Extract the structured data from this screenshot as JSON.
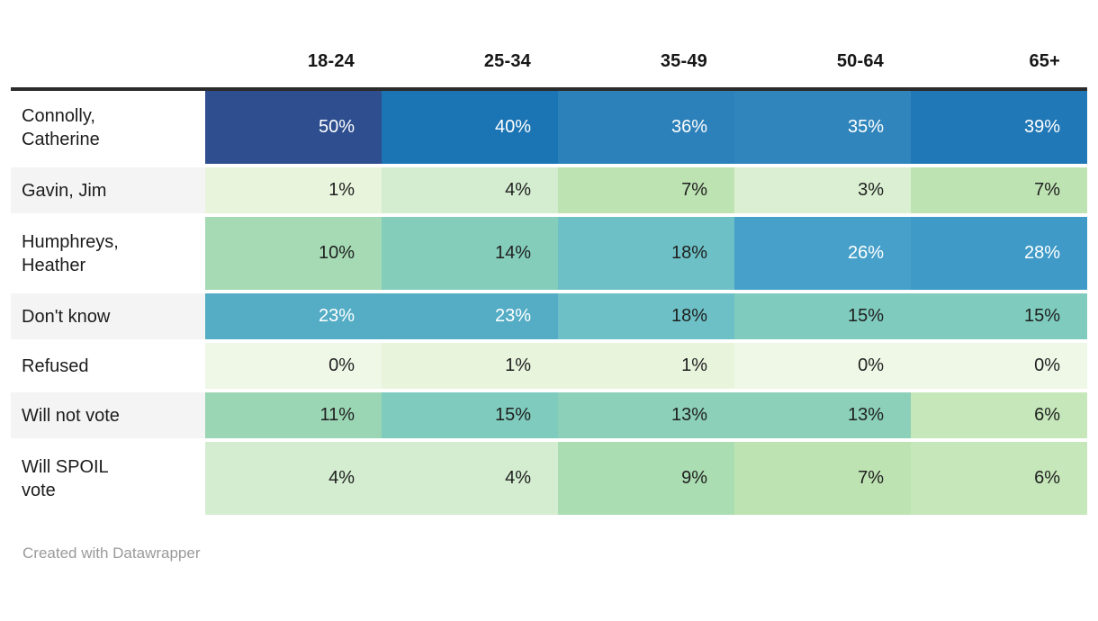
{
  "chart_data": {
    "type": "heatmap",
    "columns": [
      "18-24",
      "25-34",
      "35-49",
      "50-64",
      "65+"
    ],
    "rows": [
      "Connolly, Catherine",
      "Gavin, Jim",
      "Humphreys, Heather",
      "Don't know",
      "Refused",
      "Will not vote",
      "Will SPOIL vote"
    ],
    "values": [
      [
        50,
        40,
        36,
        35,
        39
      ],
      [
        1,
        4,
        7,
        3,
        7
      ],
      [
        10,
        14,
        18,
        26,
        28
      ],
      [
        23,
        23,
        18,
        15,
        15
      ],
      [
        0,
        1,
        1,
        0,
        0
      ],
      [
        11,
        15,
        13,
        13,
        6
      ],
      [
        4,
        4,
        9,
        7,
        6
      ]
    ],
    "unit": "%",
    "legend_position": "none",
    "color_scale": "green-to-blue (light green = 0%, dark navy blue = 50%)"
  },
  "table": {
    "columns": [
      "18-24",
      "25-34",
      "35-49",
      "50-64",
      "65+"
    ],
    "rows": [
      {
        "label": "Connolly,\nCatherine",
        "values": [
          "50%",
          "40%",
          "36%",
          "35%",
          "39%"
        ],
        "colors": [
          "#2e4e8f",
          "#1b74b3",
          "#2c81ba",
          "#3085bc",
          "#2178b6"
        ],
        "text": [
          "#ffffff",
          "#ffffff",
          "#ffffff",
          "#ffffff",
          "#ffffff"
        ]
      },
      {
        "label": "Gavin, Jim",
        "values": [
          "1%",
          "4%",
          "7%",
          "3%",
          "7%"
        ],
        "colors": [
          "#e8f4dc",
          "#d4edd0",
          "#bee3b3",
          "#dbf0d2",
          "#bee3b3"
        ],
        "text": [
          "#1f1f1f",
          "#1f1f1f",
          "#1f1f1f",
          "#1f1f1f",
          "#1f1f1f"
        ]
      },
      {
        "label": "Humphreys,\nHeather",
        "values": [
          "10%",
          "14%",
          "18%",
          "26%",
          "28%"
        ],
        "colors": [
          "#a5dab4",
          "#85cdbb",
          "#6dc1c6",
          "#47a0c9",
          "#3f9ac7"
        ],
        "text": [
          "#1f1f1f",
          "#1f1f1f",
          "#1f1f1f",
          "#ffffff",
          "#ffffff"
        ]
      },
      {
        "label": "Don't know",
        "values": [
          "23%",
          "23%",
          "18%",
          "15%",
          "15%"
        ],
        "colors": [
          "#54adc5",
          "#54adc5",
          "#6dc1c6",
          "#7fcbbd",
          "#7fcbbd"
        ],
        "text": [
          "#ffffff",
          "#ffffff",
          "#1f1f1f",
          "#1f1f1f",
          "#1f1f1f"
        ]
      },
      {
        "label": "Refused",
        "values": [
          "0%",
          "1%",
          "1%",
          "0%",
          "0%"
        ],
        "colors": [
          "#eff8e7",
          "#e8f4dc",
          "#e8f4dc",
          "#eff8e7",
          "#eff8e7"
        ],
        "text": [
          "#1f1f1f",
          "#1f1f1f",
          "#1f1f1f",
          "#1f1f1f",
          "#1f1f1f"
        ]
      },
      {
        "label": "Will not vote",
        "values": [
          "11%",
          "15%",
          "13%",
          "13%",
          "6%"
        ],
        "colors": [
          "#9bd6b4",
          "#7fcbbd",
          "#8cd0b9",
          "#8cd0b9",
          "#c5e7ba"
        ],
        "text": [
          "#1f1f1f",
          "#1f1f1f",
          "#1f1f1f",
          "#1f1f1f",
          "#1f1f1f"
        ]
      },
      {
        "label": "Will SPOIL\nvote",
        "values": [
          "4%",
          "4%",
          "9%",
          "7%",
          "6%"
        ],
        "colors": [
          "#d4edd0",
          "#d4edd0",
          "#aaddb2",
          "#bee3b3",
          "#c5e7ba"
        ],
        "text": [
          "#1f1f1f",
          "#1f1f1f",
          "#1f1f1f",
          "#1f1f1f",
          "#1f1f1f"
        ]
      }
    ]
  },
  "footer": {
    "credit": "Created with Datawrapper"
  }
}
